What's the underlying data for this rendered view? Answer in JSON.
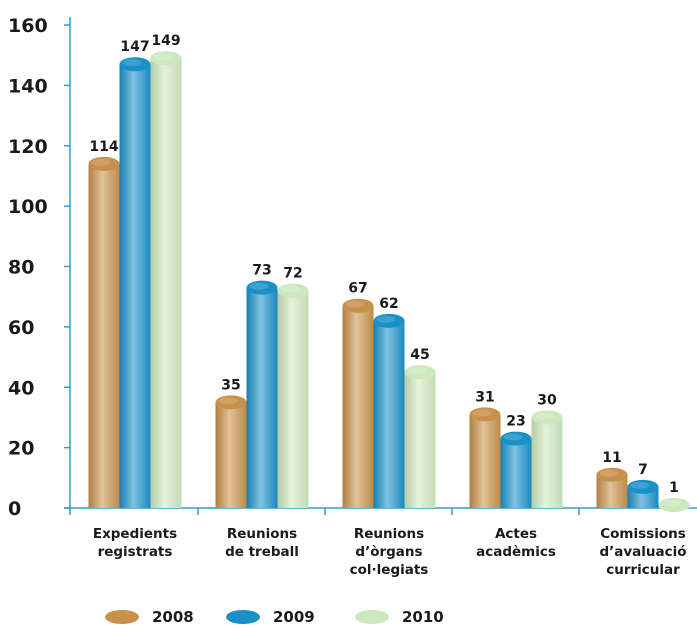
{
  "chart_data": {
    "type": "bar",
    "categories": [
      [
        "Expedients",
        "registrats"
      ],
      [
        "Reunions",
        "de treball"
      ],
      [
        "Reunions",
        "d’òrgans",
        "col·legiats"
      ],
      [
        "Actes",
        "acadèmics"
      ],
      [
        "Comissions",
        "d’avaluació",
        "curricular"
      ]
    ],
    "series": [
      {
        "name": "2008",
        "values": [
          114,
          35,
          67,
          31,
          11
        ]
      },
      {
        "name": "2009",
        "values": [
          147,
          73,
          62,
          23,
          7
        ]
      },
      {
        "name": "2010",
        "values": [
          149,
          72,
          45,
          30,
          1
        ]
      }
    ],
    "ylim": [
      0,
      160
    ],
    "yticks": [
      0,
      20,
      40,
      60,
      80,
      100,
      120,
      140,
      160
    ],
    "grid": false,
    "legend_position": "bottom-left",
    "colors": {
      "2008": "#c8904a",
      "2009": "#1a90c8",
      "2010": "#cde8bd",
      "axis": "#3a98c8"
    }
  }
}
